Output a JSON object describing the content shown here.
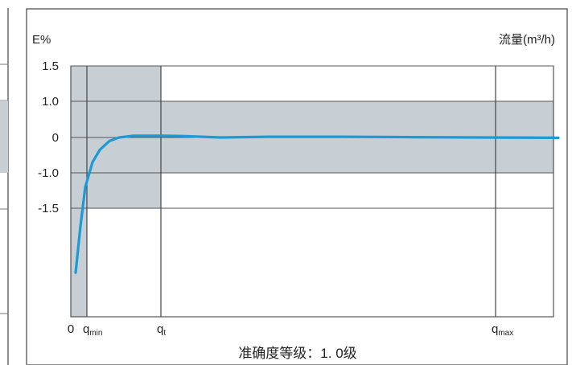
{
  "chart_data": {
    "type": "line",
    "ylabel": "E%",
    "xlabel": "流量(m³/h)",
    "caption": "准确度等级：1. 0级",
    "y_ticks": [
      "1.5",
      "1.0",
      "0",
      "-1.0",
      "-1.5"
    ],
    "y_tick_values": [
      1.5,
      1.0,
      0,
      -1.0,
      -1.5
    ],
    "x_markers": [
      {
        "label": "0",
        "sub": ""
      },
      {
        "label": "q",
        "sub": "min"
      },
      {
        "label": "q",
        "sub": "t"
      },
      {
        "label": "q",
        "sub": "max"
      }
    ],
    "tolerance_bands": [
      {
        "from": "0",
        "to": "q_t",
        "y_range": [
          -1.5,
          1.5
        ]
      },
      {
        "from": "q_t",
        "to": "end",
        "y_range": [
          -1.0,
          1.0
        ]
      }
    ],
    "series": [
      {
        "color": "#1a9ad6",
        "points": [
          [
            0.0,
            -3.3
          ],
          [
            0.01,
            -2.0
          ],
          [
            0.02,
            -1.2
          ],
          [
            0.035,
            -0.7
          ],
          [
            0.05,
            -0.35
          ],
          [
            0.07,
            -0.1
          ],
          [
            0.09,
            0.0
          ],
          [
            0.12,
            0.05
          ],
          [
            0.18,
            0.05
          ],
          [
            0.22,
            0.04
          ],
          [
            0.3,
            0.0
          ],
          [
            0.4,
            0.02
          ],
          [
            0.55,
            0.02
          ],
          [
            0.7,
            0.01
          ],
          [
            0.85,
            0.0
          ],
          [
            1.0,
            -0.01
          ]
        ]
      }
    ],
    "colors": {
      "band": "#c7ced4",
      "line": "#1a9ad6",
      "axis": "#333333"
    }
  }
}
